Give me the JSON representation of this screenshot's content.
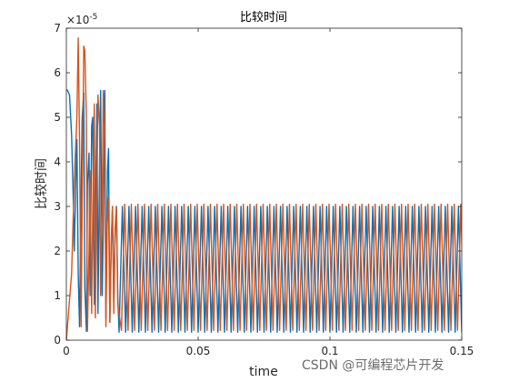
{
  "chart_data": {
    "type": "line",
    "title": "比较时间",
    "xlabel": "time",
    "ylabel": "比较时间",
    "exponent_label": "×10",
    "exponent_power": "-5",
    "xlim": [
      0,
      0.15
    ],
    "ylim": [
      0,
      7
    ],
    "xticks": [
      0,
      0.05,
      0.1,
      0.15
    ],
    "xtick_labels": [
      "0",
      "0.05",
      "0.1",
      "0.15"
    ],
    "yticks": [
      0,
      1,
      2,
      3,
      4,
      5,
      6,
      7
    ],
    "ytick_labels": [
      "0",
      "1",
      "2",
      "3",
      "4",
      "5",
      "6",
      "7"
    ],
    "grid": false,
    "legend": "none",
    "series": [
      {
        "color": "#0072BD",
        "x": [
          0,
          0.0005,
          0.0012,
          0.002,
          0.0026,
          0.003,
          0.0036,
          0.004,
          0.0045,
          0.005,
          0.0055,
          0.006,
          0.0066,
          0.007,
          0.0076,
          0.008,
          0.0086,
          0.009,
          0.0096,
          0.01,
          0.0106,
          0.011,
          0.0116,
          0.012,
          0.0126,
          0.013,
          0.0136,
          0.014,
          0.0146,
          0.015,
          0.0156,
          0.016,
          0.0165,
          0.017,
          0.0175,
          0.018,
          0.0185,
          0.019,
          0.0195
        ],
        "y": [
          5.62,
          5.6,
          5.5,
          4.6,
          3.2,
          2.0,
          3.6,
          4.5,
          1.5,
          0.3,
          2.8,
          5.0,
          5.55,
          1.2,
          0.2,
          3.5,
          4.2,
          1.0,
          4.8,
          5.0,
          0.8,
          2.6,
          5.3,
          0.6,
          4.0,
          5.6,
          1.0,
          2.5,
          5.6,
          0.5,
          3.8,
          4.3,
          0.4,
          2.0,
          3.0,
          0.8,
          2.5,
          3.0,
          1.0
        ]
      },
      {
        "color": "#D95319",
        "x": [
          0,
          0.002,
          0.003,
          0.004,
          0.0045,
          0.005,
          0.0056,
          0.006,
          0.0066,
          0.007,
          0.0076,
          0.008,
          0.0086,
          0.009,
          0.0096,
          0.01,
          0.0106,
          0.011,
          0.0116,
          0.012,
          0.0126,
          0.013,
          0.0136,
          0.014,
          0.0146,
          0.015,
          0.0155,
          0.016,
          0.0165,
          0.017,
          0.0175,
          0.018,
          0.0185,
          0.019,
          0.0195
        ],
        "y": [
          0,
          1.5,
          3.6,
          5.0,
          6.78,
          4.5,
          0.3,
          3.0,
          6.6,
          6.5,
          5.0,
          0.2,
          2.0,
          3.8,
          0.6,
          2.8,
          5.3,
          0.5,
          3.5,
          5.5,
          4.8,
          1.0,
          3.0,
          5.6,
          4.5,
          0.3,
          2.6,
          3.2,
          0.4,
          2.2,
          3.0,
          0.6,
          2.4,
          3.0,
          0.8
        ]
      }
    ],
    "steady_state": {
      "x_start": 0.0195,
      "x_end": 0.15,
      "period": 0.0025,
      "blue_peak": 3.0,
      "blue_trough": 0.18,
      "orange_peak": 3.05,
      "orange_trough": 0.22,
      "orange_phase": 0.0009
    }
  },
  "watermark": "CSDN @可编程芯片开发"
}
